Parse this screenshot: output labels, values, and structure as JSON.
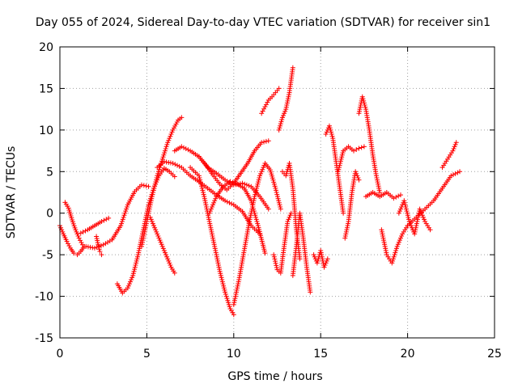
{
  "chart_data": {
    "type": "scatter",
    "title": "Day 055 of 2024, Sidereal Day-to-day VTEC variation (SDTVAR) for receiver sin1",
    "xlabel": "GPS time / hours",
    "ylabel": "SDTVAR / TECUs",
    "xlim": [
      0,
      25
    ],
    "ylim": [
      -15,
      20
    ],
    "xticks": [
      0,
      5,
      10,
      15,
      20,
      25
    ],
    "yticks": [
      -15,
      -10,
      -5,
      0,
      5,
      10,
      15,
      20
    ],
    "grid": true,
    "legend": "none",
    "marker": "+",
    "color": "#ff0000",
    "series": [
      {
        "x": [
          0.0,
          0.2,
          0.4,
          0.6,
          0.8,
          1.0,
          1.2,
          1.4
        ],
        "y": [
          -1.5,
          -2.5,
          -3.4,
          -4.2,
          -4.8,
          -5.0,
          -4.6,
          -4.0
        ]
      },
      {
        "x": [
          0.3,
          0.5,
          0.7,
          0.9,
          1.1,
          1.3
        ],
        "y": [
          1.3,
          0.6,
          -0.8,
          -2.0,
          -3.0,
          -3.8
        ]
      },
      {
        "x": [
          1.2,
          1.6,
          2.0,
          2.4,
          2.8
        ],
        "y": [
          -2.4,
          -2.0,
          -1.5,
          -1.0,
          -0.6
        ]
      },
      {
        "x": [
          1.5,
          2.0,
          2.5,
          3.0,
          3.5,
          3.9,
          4.3,
          4.7,
          5.1
        ],
        "y": [
          -4.0,
          -4.2,
          -3.8,
          -3.2,
          -1.5,
          1.0,
          2.6,
          3.4,
          3.2
        ]
      },
      {
        "x": [
          2.1,
          2.2,
          2.3,
          2.4
        ],
        "y": [
          -2.8,
          -3.8,
          -4.6,
          -5.0
        ]
      },
      {
        "x": [
          3.3,
          3.6,
          3.9,
          4.2,
          4.5,
          4.8,
          5.1,
          5.4,
          5.7,
          6.0,
          6.3,
          6.6
        ],
        "y": [
          -8.5,
          -9.6,
          -9.0,
          -7.5,
          -5.0,
          -2.0,
          1.0,
          3.0,
          4.5,
          5.4,
          5.0,
          4.4
        ]
      },
      {
        "x": [
          4.7,
          5.0,
          5.3,
          5.6,
          5.9,
          6.2,
          6.5,
          6.8,
          7.0
        ],
        "y": [
          -4.0,
          -1.0,
          2.0,
          4.5,
          6.5,
          8.5,
          10.0,
          11.2,
          11.5
        ]
      },
      {
        "x": [
          5.2,
          5.5,
          5.8,
          6.1,
          6.4,
          6.6
        ],
        "y": [
          -0.5,
          -2.0,
          -3.5,
          -5.0,
          -6.5,
          -7.2
        ]
      },
      {
        "x": [
          5.6,
          6.0,
          6.5,
          7.0,
          7.5,
          8.0,
          8.5,
          9.0,
          9.5,
          10.0,
          10.5,
          11.0,
          11.5
        ],
        "y": [
          5.5,
          6.2,
          6.0,
          5.5,
          4.5,
          3.8,
          3.0,
          2.2,
          1.5,
          1.0,
          0.2,
          -1.5,
          -2.5
        ]
      },
      {
        "x": [
          6.6,
          7.0,
          7.5,
          8.0,
          8.5,
          9.0,
          9.5,
          10.0,
          10.5,
          11.0,
          11.5,
          12.0
        ],
        "y": [
          7.5,
          8.0,
          7.5,
          6.8,
          5.5,
          4.8,
          4.0,
          3.4,
          3.6,
          3.2,
          2.0,
          0.5
        ]
      },
      {
        "x": [
          7.5,
          8.0,
          8.3,
          8.6,
          8.9,
          9.2,
          9.5,
          9.8,
          10.0
        ],
        "y": [
          5.5,
          4.5,
          2.0,
          -1.0,
          -4.0,
          -7.0,
          -9.5,
          -11.5,
          -12.2
        ]
      },
      {
        "x": [
          8.0,
          8.4,
          8.8,
          9.2,
          9.6,
          10.0,
          10.4,
          10.8,
          11.2,
          11.6,
          12.0
        ],
        "y": [
          6.8,
          5.8,
          4.6,
          3.5,
          2.8,
          3.6,
          4.8,
          6.0,
          7.5,
          8.5,
          8.7
        ]
      },
      {
        "x": [
          8.6,
          9.0,
          9.4,
          9.8,
          10.2,
          10.6,
          11.0,
          11.4,
          11.8
        ],
        "y": [
          0.0,
          2.0,
          3.2,
          3.8,
          3.5,
          3.0,
          1.5,
          -1.5,
          -4.8
        ]
      },
      {
        "x": [
          10.0,
          10.3,
          10.6,
          10.9,
          11.2,
          11.5,
          11.8,
          12.1,
          12.4,
          12.7
        ],
        "y": [
          -11.0,
          -8.0,
          -4.5,
          -1.0,
          2.0,
          4.5,
          6.0,
          5.2,
          3.0,
          0.5
        ]
      },
      {
        "x": [
          11.6,
          11.8,
          12.0,
          12.2,
          12.4,
          12.6
        ],
        "y": [
          12.0,
          12.8,
          13.6,
          14.0,
          14.5,
          15.0
        ]
      },
      {
        "x": [
          12.6,
          12.8,
          13.0,
          13.2,
          13.3,
          13.4
        ],
        "y": [
          10.0,
          11.5,
          12.5,
          14.5,
          16.0,
          17.5
        ]
      },
      {
        "x": [
          12.3,
          12.5,
          12.7,
          12.9,
          13.1,
          13.3
        ],
        "y": [
          -5.0,
          -6.8,
          -7.2,
          -4.0,
          -1.0,
          0.0
        ]
      },
      {
        "x": [
          12.8,
          13.0,
          13.2,
          13.4,
          13.6,
          13.8
        ],
        "y": [
          5.0,
          4.5,
          6.0,
          3.0,
          -2.0,
          -5.5
        ]
      },
      {
        "x": [
          13.4,
          13.6,
          13.8,
          14.0,
          14.2,
          14.4
        ],
        "y": [
          -7.5,
          -4.0,
          0.0,
          -3.0,
          -6.5,
          -9.5
        ]
      },
      {
        "x": [
          14.6,
          14.8,
          15.0,
          15.2,
          15.4
        ],
        "y": [
          -5.0,
          -6.0,
          -4.5,
          -6.5,
          -5.5
        ]
      },
      {
        "x": [
          15.3,
          15.5,
          15.7,
          15.9,
          16.1,
          16.3
        ],
        "y": [
          9.5,
          10.5,
          9.0,
          6.0,
          3.0,
          0.0
        ]
      },
      {
        "x": [
          16.0,
          16.3,
          16.6,
          16.9,
          17.2,
          17.5
        ],
        "y": [
          5.0,
          7.5,
          8.0,
          7.5,
          7.8,
          8.0
        ]
      },
      {
        "x": [
          16.4,
          16.6,
          16.8,
          17.0,
          17.2
        ],
        "y": [
          -3.0,
          -1.0,
          2.5,
          5.0,
          4.0
        ]
      },
      {
        "x": [
          17.2,
          17.4,
          17.6,
          17.8,
          18.0,
          18.2,
          18.4
        ],
        "y": [
          12.0,
          14.0,
          12.5,
          10.0,
          7.0,
          4.5,
          2.5
        ]
      },
      {
        "x": [
          17.6,
          18.0,
          18.4,
          18.8,
          19.2,
          19.6
        ],
        "y": [
          2.0,
          2.5,
          2.0,
          2.5,
          1.8,
          2.2
        ]
      },
      {
        "x": [
          18.5,
          18.8,
          19.1,
          19.4,
          19.7,
          20.0
        ],
        "y": [
          -2.0,
          -5.0,
          -6.0,
          -4.0,
          -2.5,
          -1.5
        ]
      },
      {
        "x": [
          19.5,
          19.8,
          20.1,
          20.4,
          20.7,
          21.0,
          21.3
        ],
        "y": [
          0.0,
          1.5,
          -1.0,
          -2.5,
          0.5,
          -1.0,
          -2.0
        ]
      },
      {
        "x": [
          20.0,
          20.5,
          21.0,
          21.5,
          22.0,
          22.5,
          23.0
        ],
        "y": [
          -1.5,
          -0.5,
          0.5,
          1.5,
          3.0,
          4.5,
          5.0
        ]
      },
      {
        "x": [
          22.0,
          22.3,
          22.6,
          22.8
        ],
        "y": [
          5.5,
          6.5,
          7.5,
          8.5
        ]
      }
    ]
  }
}
